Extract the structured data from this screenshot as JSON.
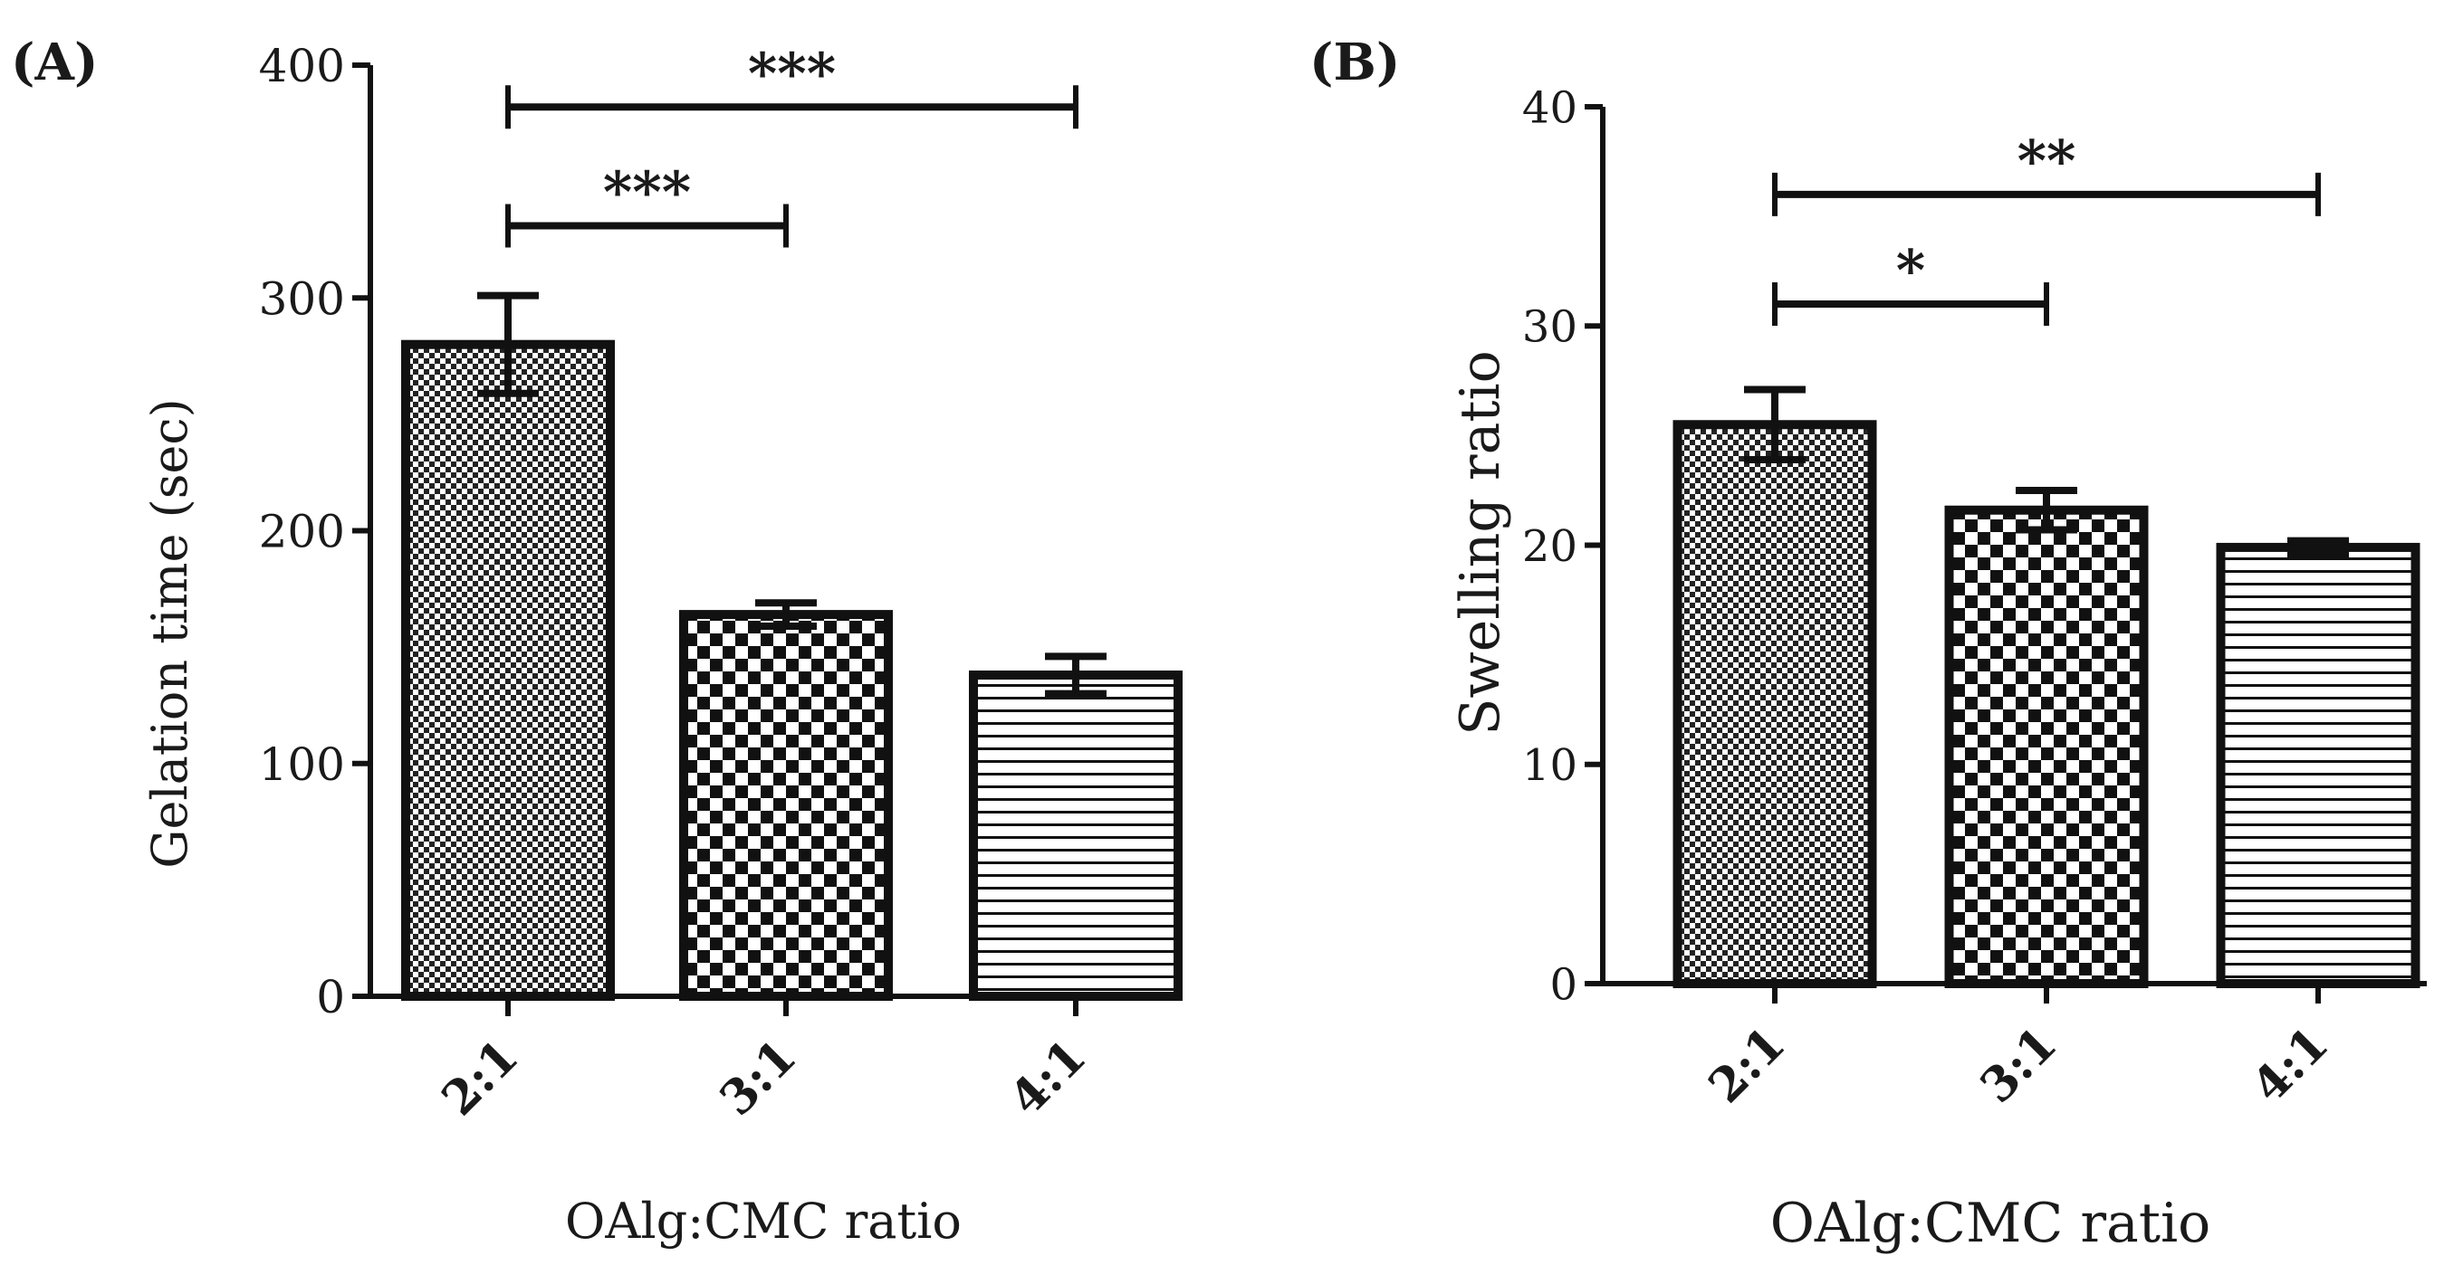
{
  "chart_data": [
    {
      "type": "bar",
      "panel_label": "(A)",
      "categories": [
        "2:1",
        "3:1",
        "4:1"
      ],
      "values": [
        280,
        164,
        138
      ],
      "errors": [
        21,
        5,
        8
      ],
      "patterns": [
        "fine-check",
        "coarse-check",
        "horizontal-lines"
      ],
      "xlabel": "OAlg:CMC ratio",
      "ylabel": "Gelation time (sec)",
      "ylim": [
        0,
        400
      ],
      "yticks": [
        "0",
        "100",
        "200",
        "300",
        "400"
      ],
      "grid": false,
      "significance": [
        {
          "from": 0,
          "to": 1,
          "label": "***",
          "y": 331
        },
        {
          "from": 0,
          "to": 2,
          "label": "***",
          "y": 382
        }
      ]
    },
    {
      "type": "bar",
      "panel_label": "(B)",
      "categories": [
        "2:1",
        "3:1",
        "4:1"
      ],
      "values": [
        25.5,
        21.6,
        19.9
      ],
      "errors": [
        1.6,
        0.9,
        0.3
      ],
      "patterns": [
        "fine-check",
        "coarse-check",
        "horizontal-lines"
      ],
      "xlabel": "OAlg:CMC ratio",
      "ylabel": "Swelling ratio",
      "ylim": [
        0,
        40
      ],
      "yticks": [
        "0",
        "10",
        "20",
        "30",
        "40"
      ],
      "grid": false,
      "significance": [
        {
          "from": 0,
          "to": 1,
          "label": "*",
          "y": 31
        },
        {
          "from": 0,
          "to": 2,
          "label": "**",
          "y": 36
        }
      ]
    }
  ]
}
